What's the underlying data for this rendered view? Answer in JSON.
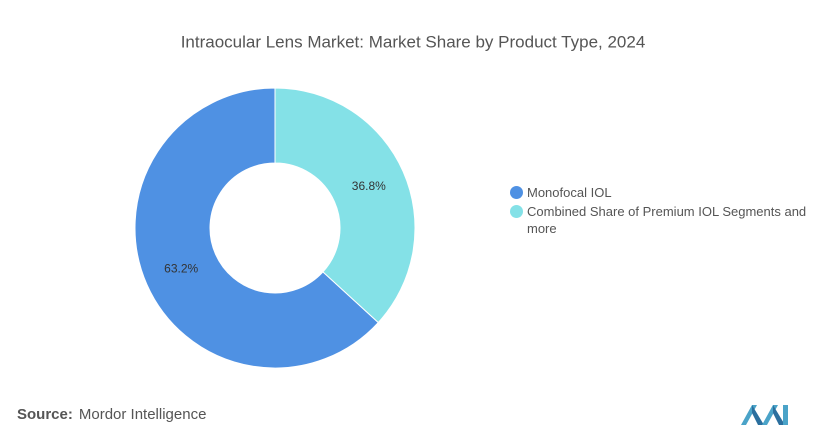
{
  "chart_data": {
    "type": "donut",
    "title": "Intraocular Lens Market: Market Share by Product Type, 2024",
    "categories": [
      "Monofocal IOL",
      "Combined Share of Premium IOL Segments and more"
    ],
    "values": [
      63.2,
      36.8
    ],
    "value_labels": [
      "63.2%",
      "36.8%"
    ],
    "colors": [
      "#4f91e3",
      "#84e1e7"
    ]
  },
  "source_label": "Source:",
  "source": "Mordor Intelligence"
}
